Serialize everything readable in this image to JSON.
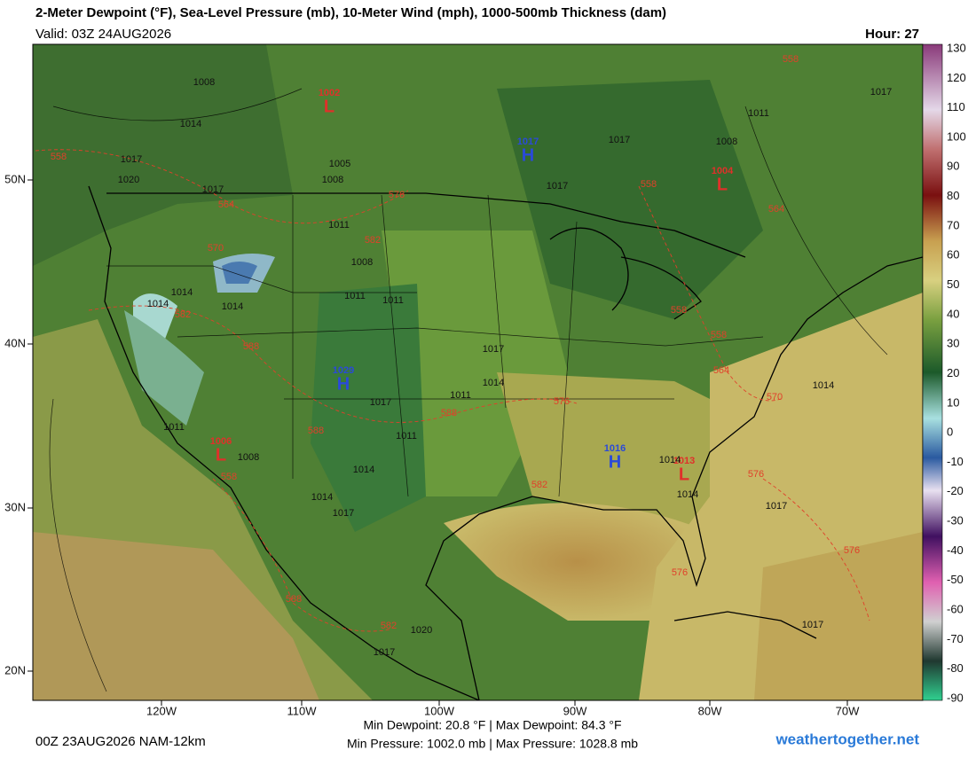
{
  "header": {
    "title": "2-Meter Dewpoint (°F), Sea-Level Pressure (mb), 10-Meter Wind (mph), 1000-500mb Thickness (dam)",
    "valid": "Valid: 03Z 24AUG2026",
    "hour": "Hour: 27"
  },
  "map": {
    "lat_labels": [
      "50N",
      "40N",
      "30N",
      "20N"
    ],
    "lon_labels": [
      "120W",
      "110W",
      "100W",
      "90W",
      "80W",
      "70W"
    ],
    "highs": [
      {
        "symbol": "H",
        "pressure": "1017"
      },
      {
        "symbol": "H",
        "pressure": "1029"
      },
      {
        "symbol": "H",
        "pressure": "1016"
      }
    ],
    "lows": [
      {
        "symbol": "L",
        "pressure": "1002"
      },
      {
        "symbol": "L",
        "pressure": "1004"
      },
      {
        "symbol": "L",
        "pressure": "1006"
      },
      {
        "symbol": "L",
        "pressure": "1013"
      }
    ],
    "isobar_labels": [
      "1008",
      "1014",
      "1017",
      "1020",
      "1017",
      "1005",
      "1008",
      "1011",
      "1008",
      "1011",
      "1011",
      "1014",
      "1014",
      "1014",
      "1017",
      "1014",
      "1011",
      "1017",
      "1011",
      "1014",
      "1014",
      "1017",
      "1017",
      "1017",
      "1011",
      "1008",
      "1017",
      "1014",
      "1017",
      "1017",
      "1014",
      "1014",
      "1020",
      "1017",
      "1011",
      "1008"
    ],
    "thickness_labels": [
      "558",
      "564",
      "576",
      "582",
      "570",
      "582",
      "588",
      "588",
      "588",
      "576",
      "582",
      "558",
      "588",
      "582",
      "558",
      "558",
      "564",
      "558",
      "558",
      "564",
      "570",
      "576",
      "576",
      "576"
    ]
  },
  "colorbar": {
    "ticks": [
      "130",
      "120",
      "110",
      "100",
      "90",
      "80",
      "70",
      "60",
      "50",
      "40",
      "30",
      "20",
      "10",
      "0",
      "-10",
      "-20",
      "-30",
      "-40",
      "-50",
      "-60",
      "-70",
      "-80",
      "-90"
    ]
  },
  "footer": {
    "run": "00Z 23AUG2026 NAM-12km",
    "dewpoint_stats": "Min Dewpoint: 20.8 °F | Max Dewpoint: 84.3 °F",
    "pressure_stats": "Min Pressure: 1002.0 mb | Max Pressure: 1028.8 mb",
    "site": "weathertogether.net"
  }
}
